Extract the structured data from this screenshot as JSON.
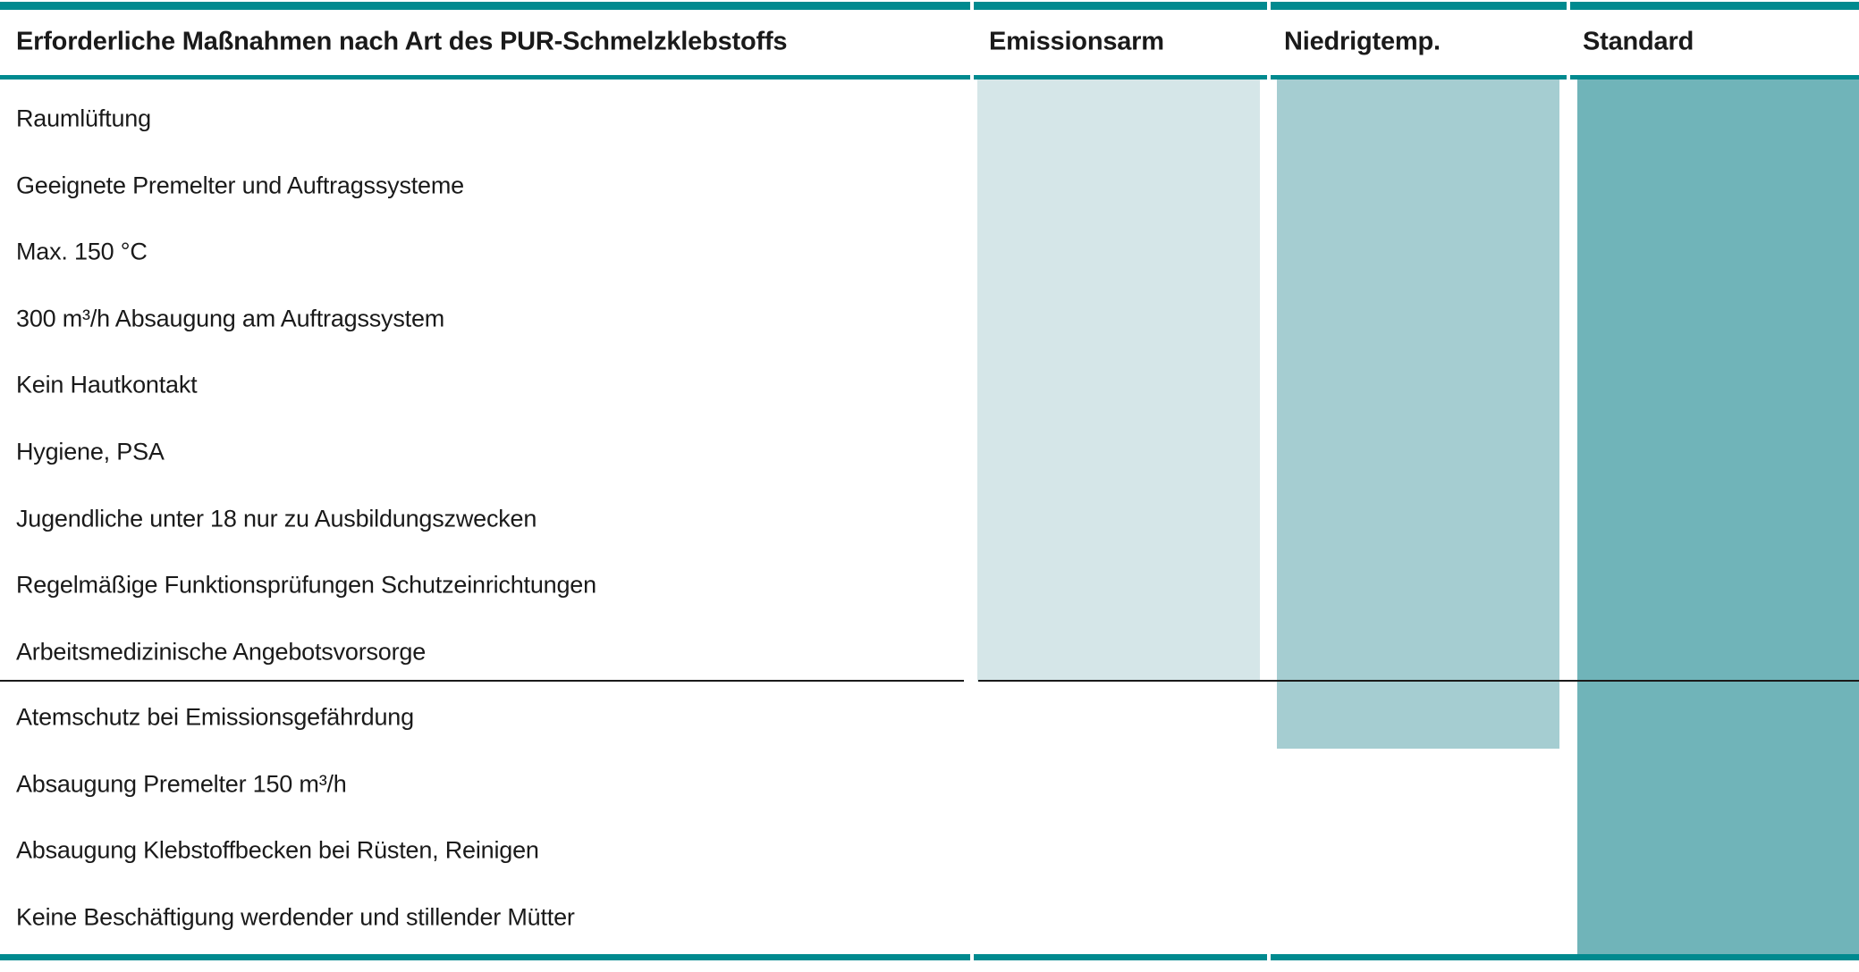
{
  "table": {
    "title": "Erforderliche Maßnahmen nach Art des PUR-Schmelzklebstoffs",
    "accent_color": "#008a8f",
    "text_color": "#1a1a1a",
    "columns": [
      {
        "label": "Emissionsarm",
        "color": "#d5e6e8",
        "applies_to_measures_from": 1,
        "applies_to_measures_to": 9
      },
      {
        "label": "Niedrigtemp.",
        "color": "#a5cdd1",
        "applies_to_measures_from": 1,
        "applies_to_measures_to": 10
      },
      {
        "label": "Standard",
        "color": "#70b4b9",
        "applies_to_measures_from": 1,
        "applies_to_measures_to": 13
      }
    ],
    "measures": [
      "Raumlüftung",
      "Geeignete Premelter und Auftragssysteme",
      "Max. 150 °C",
      "300 m³/h Absaugung am Auftragssystem",
      "Kein Hautkontakt",
      "Hygiene, PSA",
      "Jugendliche unter 18 nur zu Ausbildungszwecken",
      "Regelmäßige Funktionsprüfungen Schutzeinrichtungen",
      "Arbeitsmedizinische Angebotsvorsorge",
      "Atemschutz bei Emissionsgefährdung",
      "Absaugung Premelter 150 m³/h",
      "Absaugung Klebstoffbecken bei Rüsten, Reinigen",
      "Keine Beschäftigung werdender und stillender Mütter"
    ],
    "divider_after_measure": 9
  }
}
